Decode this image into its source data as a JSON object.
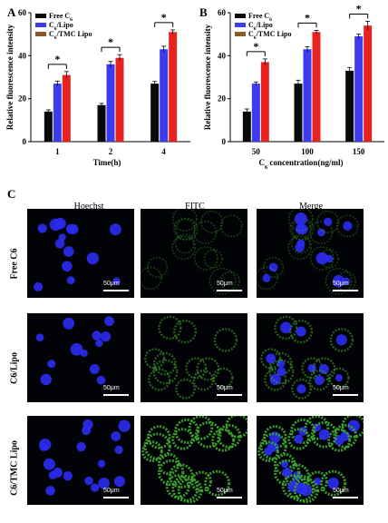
{
  "panels": {
    "a": "A",
    "b": "B",
    "c": "C"
  },
  "colors": {
    "free": "#0a0a0a",
    "lipo": "#3b3bf0",
    "tmc": "#e8231f",
    "tmc_legend": "#8a5a2b"
  },
  "legend": [
    "Free C6",
    "C6/Lipo",
    "C6/TMC Lipo"
  ],
  "sig_mark": "*",
  "chart_data": [
    {
      "type": "bar",
      "panel": "A",
      "categories": [
        "1",
        "2",
        "4"
      ],
      "series": [
        {
          "name": "Free C6",
          "values": [
            14,
            17,
            27
          ],
          "errors": [
            0.8,
            0.8,
            1.0
          ]
        },
        {
          "name": "C6/Lipo",
          "values": [
            27,
            36,
            43
          ],
          "errors": [
            1.2,
            1.3,
            1.4
          ]
        },
        {
          "name": "C6/TMC Lipo",
          "values": [
            31,
            39,
            51
          ],
          "errors": [
            1.6,
            1.5,
            1.0
          ]
        }
      ],
      "xlabel": "Time(h)",
      "ylabel": "Relative fluorescence intensity",
      "ylim": [
        0,
        60
      ],
      "yticks": [
        "0",
        "20",
        "40",
        "60"
      ],
      "legend_position": "top-left",
      "grid": false
    },
    {
      "type": "bar",
      "panel": "B",
      "categories": [
        "50",
        "100",
        "150"
      ],
      "series": [
        {
          "name": "Free C6",
          "values": [
            14,
            27,
            33
          ],
          "errors": [
            1.2,
            1.6,
            1.5
          ]
        },
        {
          "name": "C6/Lipo",
          "values": [
            27,
            43,
            49
          ],
          "errors": [
            0.8,
            1.2,
            1.0
          ]
        },
        {
          "name": "C6/TMC Lipo",
          "values": [
            37,
            51,
            54
          ],
          "errors": [
            1.5,
            0.8,
            2.0
          ]
        }
      ],
      "xlabel": "C6 concentration(ng/ml)",
      "ylabel": "Relative fluorescence intensity",
      "ylim": [
        0,
        60
      ],
      "yticks": [
        "0",
        "20",
        "40",
        "60"
      ],
      "legend_position": "top-left",
      "grid": false
    }
  ],
  "micrographs": {
    "columns": [
      "Hoechst",
      "FITC",
      "Merge"
    ],
    "rows": [
      "Free C6",
      "C6/Lipo",
      "C6/TMC Lipo"
    ],
    "scale": "50μm"
  }
}
